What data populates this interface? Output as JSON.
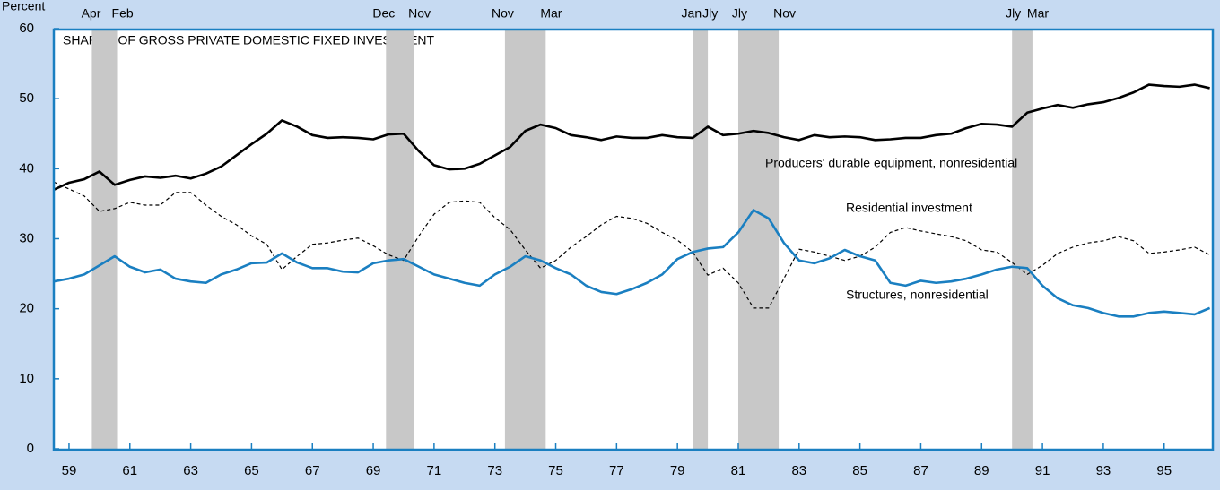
{
  "chart_data": {
    "type": "line",
    "title": "SHARES OF GROSS PRIVATE DOMESTIC FIXED INVESTMENT",
    "y_label": "Percent",
    "x": [
      1959,
      1959.5,
      1960,
      1960.5,
      1961,
      1961.5,
      1962,
      1962.5,
      1963,
      1963.5,
      1964,
      1964.5,
      1965,
      1965.5,
      1966,
      1966.5,
      1967,
      1967.5,
      1968,
      1968.5,
      1969,
      1969.5,
      1970,
      1970.5,
      1971,
      1971.5,
      1972,
      1972.5,
      1973,
      1973.5,
      1974,
      1974.5,
      1975,
      1975.5,
      1976,
      1976.5,
      1977,
      1977.5,
      1978,
      1978.5,
      1979,
      1979.5,
      1980,
      1980.5,
      1981,
      1981.5,
      1982,
      1982.5,
      1983,
      1983.5,
      1984,
      1984.5,
      1985,
      1985.5,
      1986,
      1986.5,
      1987,
      1987.5,
      1988,
      1988.5,
      1989,
      1989.5,
      1990,
      1990.5,
      1991,
      1991.5,
      1992,
      1992.5,
      1993,
      1993.5,
      1994,
      1994.5,
      1995,
      1995.5,
      1996,
      1996.5,
      1997
    ],
    "series": [
      {
        "name": "Producers' durable equipment, nonresidential",
        "color": "#000000",
        "style": "solid",
        "values": [
          37.0,
          38.0,
          38.5,
          39.6,
          37.7,
          38.4,
          38.9,
          38.7,
          39.0,
          38.6,
          39.3,
          40.3,
          41.9,
          43.5,
          45.0,
          46.9,
          46.0,
          44.8,
          44.4,
          44.5,
          44.4,
          44.2,
          44.9,
          45.0,
          42.5,
          40.5,
          39.9,
          40.0,
          40.7,
          41.9,
          43.1,
          45.4,
          46.3,
          45.8,
          44.8,
          44.5,
          44.1,
          44.6,
          44.4,
          44.4,
          44.8,
          44.5,
          44.4,
          46.0,
          44.8,
          45.0,
          45.4,
          45.1,
          44.5,
          44.1,
          44.8,
          44.5,
          44.6,
          44.5,
          44.1,
          44.2,
          44.4,
          44.4,
          44.8,
          45.0,
          45.8,
          46.4,
          46.3,
          46.0,
          48.0,
          48.6,
          49.1,
          48.7,
          49.2,
          49.5,
          50.1,
          50.9,
          52.0,
          51.8,
          51.7,
          52.0,
          51.5
        ]
      },
      {
        "name": "Residential investment",
        "color": "#000000",
        "style": "dashed",
        "values": [
          38.1,
          37.1,
          36.1,
          33.9,
          34.3,
          35.2,
          34.8,
          34.8,
          36.6,
          36.6,
          34.8,
          33.2,
          32.0,
          30.4,
          29.2,
          25.6,
          27.5,
          29.2,
          29.4,
          29.8,
          30.1,
          29.0,
          27.7,
          26.9,
          30.4,
          33.5,
          35.2,
          35.4,
          35.2,
          33.0,
          31.3,
          28.4,
          25.8,
          26.9,
          28.8,
          30.3,
          32.0,
          33.2,
          32.9,
          32.2,
          30.9,
          29.8,
          28.1,
          24.8,
          25.8,
          23.7,
          20.1,
          20.1,
          24.3,
          28.5,
          28.1,
          27.5,
          26.9,
          27.5,
          28.8,
          30.9,
          31.6,
          31.1,
          30.7,
          30.3,
          29.7,
          28.4,
          28.1,
          26.6,
          24.9,
          26.2,
          27.9,
          28.8,
          29.4,
          29.7,
          30.3,
          29.7,
          27.9,
          28.1,
          28.4,
          28.8,
          27.7
        ]
      },
      {
        "name": "Structures, nonresidential",
        "color": "#1a7fc1",
        "style": "solid",
        "values": [
          23.9,
          24.3,
          24.9,
          26.2,
          27.5,
          26.0,
          25.2,
          25.6,
          24.3,
          23.9,
          23.7,
          24.9,
          25.6,
          26.5,
          26.6,
          27.9,
          26.6,
          25.8,
          25.8,
          25.3,
          25.2,
          26.5,
          26.9,
          27.1,
          26.0,
          24.9,
          24.3,
          23.7,
          23.3,
          24.9,
          26.0,
          27.5,
          26.9,
          25.8,
          24.9,
          23.3,
          22.4,
          22.1,
          22.8,
          23.7,
          24.9,
          27.1,
          28.1,
          28.6,
          28.8,
          30.9,
          34.1,
          32.9,
          29.4,
          26.9,
          26.5,
          27.2,
          28.4,
          27.5,
          26.9,
          23.7,
          23.3,
          24.0,
          23.7,
          23.9,
          24.3,
          24.9,
          25.6,
          26.0,
          25.8,
          23.3,
          21.5,
          20.5,
          20.1,
          19.4,
          18.9,
          18.9,
          19.4,
          19.6,
          19.4,
          19.2,
          20.1
        ]
      }
    ],
    "recessions": [
      {
        "start": 1960.25,
        "end": 1961.08,
        "start_label": "Apr",
        "end_label": "Feb"
      },
      {
        "start": 1969.92,
        "end": 1970.83,
        "start_label": "Dec",
        "end_label": "Nov"
      },
      {
        "start": 1973.83,
        "end": 1975.17,
        "start_label": "Nov",
        "end_label": "Mar"
      },
      {
        "start": 1980.0,
        "end": 1980.5,
        "start_label": "Jan",
        "end_label": "Jly"
      },
      {
        "start": 1981.5,
        "end": 1982.83,
        "start_label": "Jly",
        "end_label": "Nov"
      },
      {
        "start": 1990.5,
        "end": 1991.17,
        "start_label": "Jly",
        "end_label": "Mar"
      }
    ],
    "xlim": [
      1959,
      1997.1
    ],
    "xticks": [
      {
        "value": 1959.5,
        "label": "59"
      },
      {
        "value": 1961.5,
        "label": "61"
      },
      {
        "value": 1963.5,
        "label": "63"
      },
      {
        "value": 1965.5,
        "label": "65"
      },
      {
        "value": 1967.5,
        "label": "67"
      },
      {
        "value": 1969.5,
        "label": "69"
      },
      {
        "value": 1971.5,
        "label": "71"
      },
      {
        "value": 1973.5,
        "label": "73"
      },
      {
        "value": 1975.5,
        "label": "75"
      },
      {
        "value": 1977.5,
        "label": "77"
      },
      {
        "value": 1979.5,
        "label": "79"
      },
      {
        "value": 1981.5,
        "label": "81"
      },
      {
        "value": 1983.5,
        "label": "83"
      },
      {
        "value": 1985.5,
        "label": "85"
      },
      {
        "value": 1987.5,
        "label": "87"
      },
      {
        "value": 1989.5,
        "label": "89"
      },
      {
        "value": 1991.5,
        "label": "91"
      },
      {
        "value": 1993.5,
        "label": "93"
      },
      {
        "value": 1995.5,
        "label": "95"
      }
    ],
    "ylim": [
      0,
      60
    ],
    "yticks": [
      0,
      10,
      20,
      30,
      40,
      50,
      60
    ],
    "grid": false
  }
}
